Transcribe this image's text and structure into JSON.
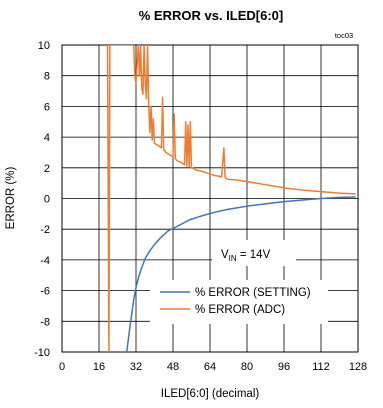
{
  "chart_data": {
    "type": "line",
    "title": "% ERROR vs. ILED[6:0]",
    "toc": "toc03",
    "xlabel": "ILED[6:0] (decimal)",
    "ylabel": "ERROR (%)",
    "xlim": [
      0,
      128
    ],
    "ylim": [
      -10,
      10
    ],
    "x_ticks": [
      0,
      16,
      32,
      48,
      64,
      80,
      96,
      112,
      128
    ],
    "y_ticks": [
      -10,
      -8,
      -6,
      -4,
      -2,
      0,
      2,
      4,
      6,
      8,
      10
    ],
    "grid": true,
    "annotation": {
      "base": "V",
      "sub": "IN",
      "rest": " = 14V"
    },
    "series": [
      {
        "name": "% ERROR (SETTING)",
        "color": "#4472c4",
        "x": [
          28,
          29,
          30,
          31,
          32,
          33,
          34,
          36,
          38,
          40,
          43,
          46,
          50,
          55,
          60,
          66,
          72,
          80,
          88,
          96,
          104,
          112,
          120,
          127
        ],
        "y": [
          -10,
          -8.8,
          -7.7,
          -6.6,
          -5.8,
          -5.2,
          -4.7,
          -3.9,
          -3.4,
          -3.0,
          -2.5,
          -2.1,
          -1.8,
          -1.4,
          -1.15,
          -0.9,
          -0.7,
          -0.5,
          -0.35,
          -0.2,
          -0.1,
          0.0,
          0.07,
          0.1
        ]
      },
      {
        "name": "% ERROR (ADC)",
        "color": "#ed7d31",
        "x": [
          19.7,
          20.3,
          20.7,
          31,
          31.5,
          32,
          33,
          33.5,
          34,
          34.5,
          35,
          35.5,
          36,
          36.5,
          37,
          37.5,
          38,
          38.5,
          39,
          39.5,
          40,
          41,
          42,
          43,
          43.5,
          44,
          44.5,
          45,
          46,
          47,
          48,
          48.5,
          49,
          49.5,
          50,
          52,
          53,
          53.5,
          54,
          54.5,
          55,
          55.5,
          56,
          57,
          58,
          60,
          62,
          64,
          66,
          68,
          69,
          70,
          70.5,
          71,
          72,
          76,
          80,
          84,
          88,
          92,
          96,
          100,
          104,
          108,
          112,
          116,
          120,
          124,
          127
        ],
        "y": [
          10,
          -10,
          10,
          10,
          8.0,
          7.5,
          10,
          8.0,
          10,
          7.2,
          6.8,
          10,
          7.5,
          6.5,
          10,
          6.2,
          4.3,
          6.0,
          3.8,
          5.2,
          3.6,
          3.5,
          3.4,
          3.3,
          6.6,
          3.2,
          3.1,
          3.0,
          2.9,
          2.8,
          2.7,
          5.5,
          2.6,
          2.5,
          2.45,
          2.3,
          2.2,
          5.0,
          2.1,
          4.8,
          2.05,
          5.0,
          2.0,
          1.95,
          1.85,
          1.8,
          1.7,
          1.6,
          1.5,
          1.45,
          1.4,
          3.3,
          1.4,
          1.3,
          1.25,
          1.2,
          1.1,
          1.0,
          0.9,
          0.8,
          0.7,
          0.62,
          0.55,
          0.5,
          0.45,
          0.4,
          0.35,
          0.32,
          0.3
        ]
      }
    ]
  }
}
